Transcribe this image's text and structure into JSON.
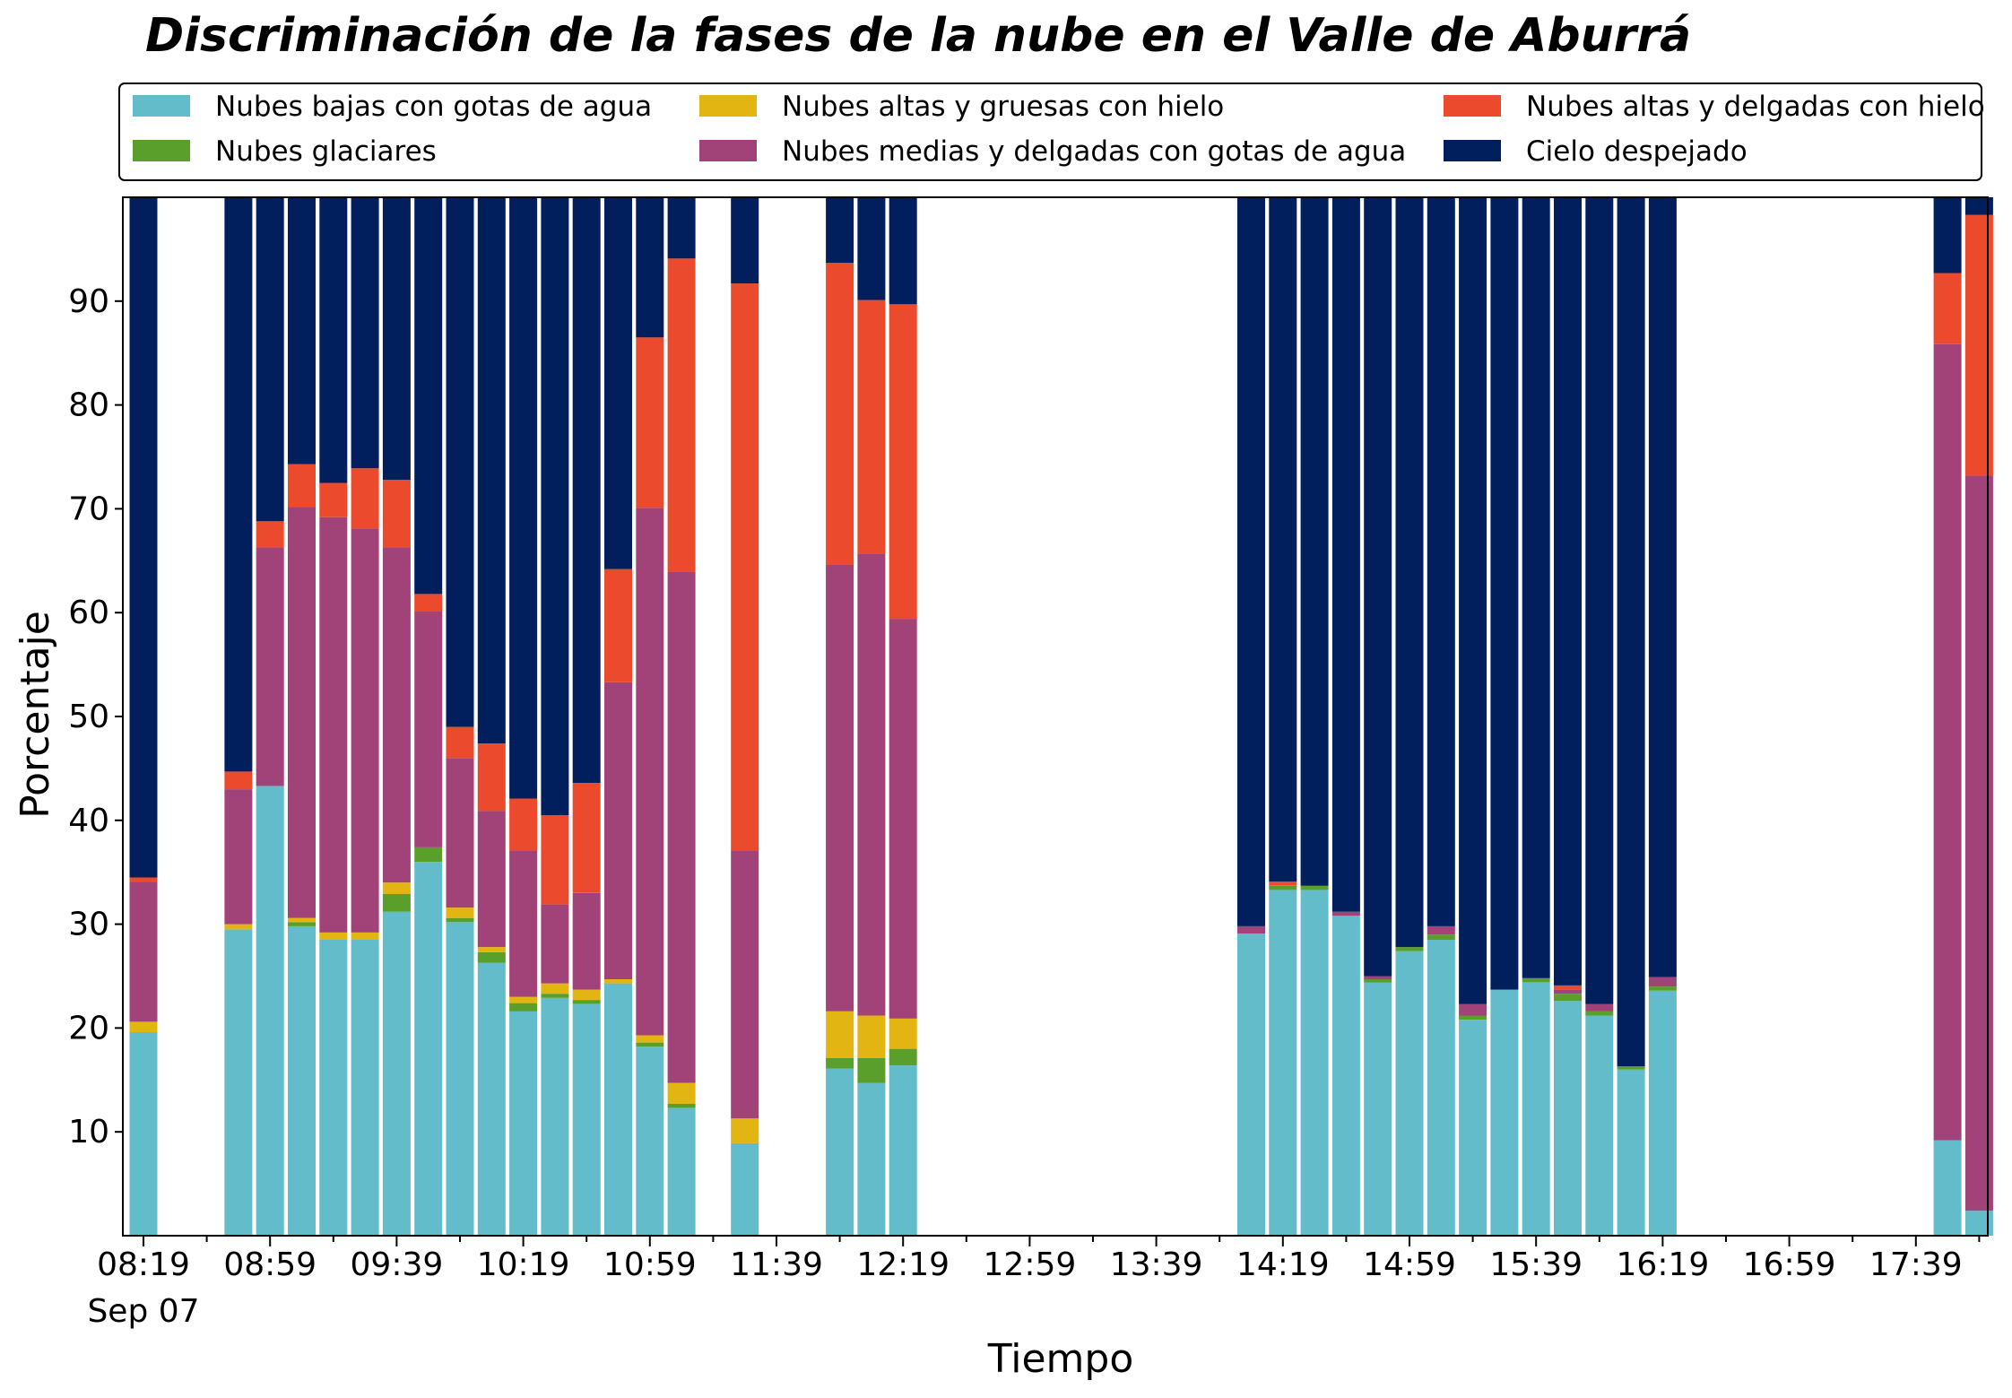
{
  "chart_data": {
    "type": "bar",
    "stacked": true,
    "title": "Discriminación de la fases de la nube en el Valle de Aburrá",
    "xlabel": "Tiempo",
    "ylabel": "Porcentaje",
    "ylim": [
      0,
      100
    ],
    "yticks": [
      "10",
      "20",
      "30",
      "40",
      "50",
      "60",
      "70",
      "80",
      "90"
    ],
    "xticks": [
      "08:19",
      "08:59",
      "09:39",
      "10:19",
      "10:59",
      "11:39",
      "12:19",
      "12:59",
      "13:39",
      "14:19",
      "14:59",
      "15:39",
      "16:19",
      "16:59",
      "17:39"
    ],
    "xtick_sublabel": "Sep 07",
    "slot_minutes": 10,
    "start_time": "08:19",
    "legend": {
      "placement": "top",
      "columns": 3
    },
    "colors": {
      "Nubes bajas con gotas de agua": "#63bcc9",
      "Nubes glaciares": "#5a9e2c",
      "Nubes altas y gruesas con hielo": "#e3b513",
      "Nubes medias y delgadas con gotas de agua": "#a14378",
      "Nubes altas y delgadas con hielo": "#ec4a2c",
      "Cielo despejado": "#001f5c"
    },
    "series_order": [
      "Nubes bajas con gotas de agua",
      "Nubes glaciares",
      "Nubes altas y gruesas con hielo",
      "Nubes medias y delgadas con gotas de agua",
      "Nubes altas y delgadas con hielo",
      "Cielo despejado"
    ],
    "legend_order": [
      "Nubes bajas con gotas de agua",
      "Nubes glaciares",
      "Nubes altas y gruesas con hielo",
      "Nubes medias y delgadas con gotas de agua",
      "Nubes altas y delgadas con hielo",
      "Cielo despejado"
    ],
    "bars": [
      {
        "time": "08:19",
        "values": [
          19.6,
          0.0,
          1.0,
          13.5,
          0.4,
          65.5
        ]
      },
      {
        "time": "08:49",
        "values": [
          29.5,
          0.0,
          0.5,
          13.0,
          1.7,
          55.3
        ]
      },
      {
        "time": "08:59",
        "values": [
          43.3,
          0.0,
          0.0,
          23.0,
          2.5,
          31.2
        ]
      },
      {
        "time": "09:09",
        "values": [
          29.8,
          0.4,
          0.4,
          39.6,
          4.1,
          25.7
        ]
      },
      {
        "time": "09:19",
        "values": [
          28.5,
          0.0,
          0.7,
          40.0,
          3.3,
          27.5
        ]
      },
      {
        "time": "09:29",
        "values": [
          28.5,
          0.0,
          0.7,
          38.9,
          5.8,
          26.1
        ]
      },
      {
        "time": "09:39",
        "values": [
          31.2,
          1.7,
          1.1,
          32.3,
          6.5,
          27.2
        ]
      },
      {
        "time": "09:49",
        "values": [
          36.0,
          1.4,
          0.0,
          22.7,
          1.7,
          38.2
        ]
      },
      {
        "time": "09:59",
        "values": [
          30.2,
          0.4,
          1.0,
          14.4,
          3.0,
          51.0
        ]
      },
      {
        "time": "10:09",
        "values": [
          26.3,
          1.0,
          0.5,
          13.1,
          6.5,
          52.6
        ]
      },
      {
        "time": "10:19",
        "values": [
          21.6,
          0.8,
          0.6,
          14.1,
          5.0,
          57.9
        ]
      },
      {
        "time": "10:29",
        "values": [
          22.9,
          0.4,
          1.0,
          7.6,
          8.6,
          59.5
        ]
      },
      {
        "time": "10:39",
        "values": [
          22.3,
          0.4,
          1.0,
          9.3,
          10.6,
          56.4
        ]
      },
      {
        "time": "10:49",
        "values": [
          24.3,
          0.0,
          0.4,
          28.6,
          10.9,
          35.8
        ]
      },
      {
        "time": "10:59",
        "values": [
          18.2,
          0.4,
          0.7,
          50.8,
          16.4,
          13.5
        ]
      },
      {
        "time": "11:09",
        "values": [
          12.3,
          0.4,
          2.0,
          49.2,
          30.2,
          5.9
        ]
      },
      {
        "time": "11:29",
        "values": [
          8.9,
          0.0,
          2.4,
          25.8,
          54.6,
          8.3
        ]
      },
      {
        "time": "11:59",
        "values": [
          16.1,
          1.0,
          4.5,
          43.0,
          29.1,
          6.3
        ]
      },
      {
        "time": "12:09",
        "values": [
          14.7,
          2.4,
          4.1,
          44.5,
          24.4,
          9.9
        ]
      },
      {
        "time": "12:19",
        "values": [
          16.4,
          1.6,
          2.9,
          38.5,
          30.3,
          10.3
        ]
      },
      {
        "time": "14:09",
        "values": [
          29.1,
          0.0,
          0.0,
          0.7,
          0.0,
          70.2
        ]
      },
      {
        "time": "14:19",
        "values": [
          33.3,
          0.4,
          0.0,
          0.0,
          0.4,
          65.9
        ]
      },
      {
        "time": "14:29",
        "values": [
          33.3,
          0.4,
          0.0,
          0.0,
          0.0,
          66.3
        ]
      },
      {
        "time": "14:39",
        "values": [
          30.8,
          0.0,
          0.0,
          0.4,
          0.0,
          68.8
        ]
      },
      {
        "time": "14:49",
        "values": [
          24.4,
          0.3,
          0.0,
          0.3,
          0.0,
          75.0
        ]
      },
      {
        "time": "14:59",
        "values": [
          27.4,
          0.4,
          0.0,
          0.0,
          0.0,
          72.2
        ]
      },
      {
        "time": "15:09",
        "values": [
          28.5,
          0.5,
          0.0,
          0.8,
          0.0,
          70.2
        ]
      },
      {
        "time": "15:19",
        "values": [
          20.8,
          0.4,
          0.0,
          1.1,
          0.0,
          77.7
        ]
      },
      {
        "time": "15:29",
        "values": [
          23.7,
          0.0,
          0.0,
          0.0,
          0.0,
          76.3
        ]
      },
      {
        "time": "15:39",
        "values": [
          24.4,
          0.4,
          0.0,
          0.0,
          0.0,
          75.2
        ]
      },
      {
        "time": "15:49",
        "values": [
          22.6,
          0.7,
          0.0,
          0.4,
          0.4,
          75.9
        ]
      },
      {
        "time": "15:59",
        "values": [
          21.2,
          0.4,
          0.0,
          0.7,
          0.0,
          77.7
        ]
      },
      {
        "time": "16:09",
        "values": [
          16.0,
          0.3,
          0.0,
          0.0,
          0.0,
          83.7
        ]
      },
      {
        "time": "16:19",
        "values": [
          23.6,
          0.4,
          0.0,
          0.9,
          0.0,
          75.1
        ]
      },
      {
        "time": "17:49",
        "values": [
          9.2,
          0.0,
          0.0,
          76.7,
          6.8,
          7.3
        ]
      },
      {
        "time": "17:59",
        "values": [
          2.4,
          0.0,
          0.0,
          70.8,
          25.1,
          1.7
        ]
      }
    ]
  }
}
